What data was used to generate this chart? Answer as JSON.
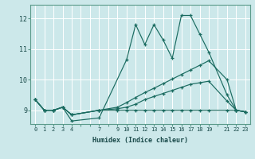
{
  "xlabel": "Humidex (Indice chaleur)",
  "background_color": "#cce8ea",
  "line_color": "#1a6b60",
  "grid_color": "#ffffff",
  "ylim": [
    8.55,
    12.45
  ],
  "ytick_positions": [
    9,
    10,
    11,
    12
  ],
  "ytick_labels": [
    "9",
    "10",
    "11",
    "12"
  ],
  "xtick_positions": [
    0,
    1,
    2,
    3,
    4,
    5,
    6,
    7,
    8,
    9,
    10,
    11,
    12,
    13,
    14,
    15,
    16,
    17,
    18,
    19,
    20,
    21,
    22,
    23
  ],
  "xtick_labels": [
    "0",
    "1",
    "2",
    "3",
    "4",
    "",
    "",
    "7",
    "",
    "9",
    "10",
    "11",
    "12",
    "13",
    "14",
    "15",
    "16",
    "17",
    "18",
    "19",
    "",
    "21",
    "22",
    "23"
  ],
  "line1_x": [
    0,
    1,
    2,
    3,
    4,
    7,
    10,
    11,
    12,
    13,
    14,
    15,
    16,
    17,
    18,
    19,
    21,
    22,
    23
  ],
  "line1_y": [
    9.35,
    9.0,
    9.0,
    9.1,
    8.65,
    8.75,
    10.65,
    11.8,
    11.15,
    11.8,
    11.3,
    10.7,
    12.1,
    12.1,
    11.5,
    10.9,
    9.5,
    9.0,
    8.95
  ],
  "line2_x": [
    0,
    1,
    2,
    3,
    4,
    7,
    9,
    10,
    11,
    12,
    13,
    14,
    15,
    16,
    17,
    18,
    19,
    21,
    22,
    23
  ],
  "line2_y": [
    9.35,
    9.0,
    9.0,
    9.1,
    8.85,
    9.0,
    9.05,
    9.1,
    9.2,
    9.35,
    9.45,
    9.55,
    9.65,
    9.75,
    9.85,
    9.9,
    9.95,
    9.3,
    9.0,
    8.95
  ],
  "line3_x": [
    0,
    1,
    2,
    3,
    4,
    7,
    9,
    10,
    11,
    12,
    13,
    14,
    15,
    16,
    17,
    18,
    19,
    21,
    22,
    23
  ],
  "line3_y": [
    9.35,
    9.0,
    9.0,
    9.1,
    8.85,
    9.0,
    9.1,
    9.25,
    9.42,
    9.58,
    9.72,
    9.87,
    10.02,
    10.17,
    10.32,
    10.47,
    10.62,
    10.0,
    9.0,
    8.95
  ],
  "line4_x": [
    0,
    1,
    2,
    3,
    4,
    7,
    9,
    10,
    11,
    12,
    13,
    14,
    15,
    16,
    17,
    18,
    19,
    21,
    22,
    23
  ],
  "line4_y": [
    9.35,
    9.0,
    9.0,
    9.1,
    8.85,
    9.0,
    9.0,
    9.0,
    9.0,
    9.0,
    9.0,
    9.0,
    9.0,
    9.0,
    9.0,
    9.0,
    9.0,
    9.0,
    9.0,
    8.95
  ]
}
